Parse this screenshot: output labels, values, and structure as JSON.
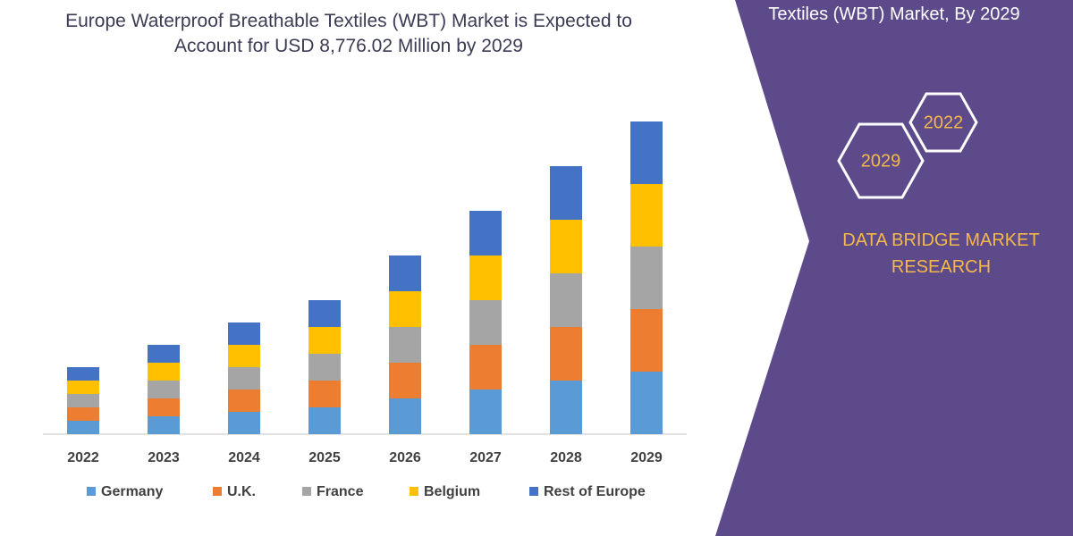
{
  "chart_data": {
    "type": "stacked_bar",
    "title": "Europe Waterproof Breathable Textiles (WBT) Market is Expected to Account for USD 8,776.02 Million by 2029",
    "categories": [
      "2022",
      "2023",
      "2024",
      "2025",
      "2026",
      "2027",
      "2028",
      "2029"
    ],
    "series": [
      {
        "name": "Germany",
        "color": "#5b9bd5",
        "values": [
          15,
          20,
          25,
          30,
          40,
          50,
          60,
          70
        ]
      },
      {
        "name": "U.K.",
        "color": "#ed7d31",
        "values": [
          15,
          20,
          25,
          30,
          40,
          50,
          60,
          70
        ]
      },
      {
        "name": "France",
        "color": "#a5a5a5",
        "values": [
          15,
          20,
          25,
          30,
          40,
          50,
          60,
          70
        ]
      },
      {
        "name": "Belgium",
        "color": "#ffc000",
        "values": [
          15,
          20,
          25,
          30,
          40,
          50,
          60,
          70
        ]
      },
      {
        "name": "Rest of Europe",
        "color": "#4472c4",
        "values": [
          15,
          20,
          25,
          30,
          40,
          50,
          60,
          70
        ]
      }
    ],
    "ylim": [
      0,
      360
    ]
  },
  "panel": {
    "heading": "Textiles (WBT) Market, By 2029",
    "hexagons": [
      "2022",
      "2029"
    ],
    "brand": "DATA BRIDGE MARKET RESEARCH"
  }
}
